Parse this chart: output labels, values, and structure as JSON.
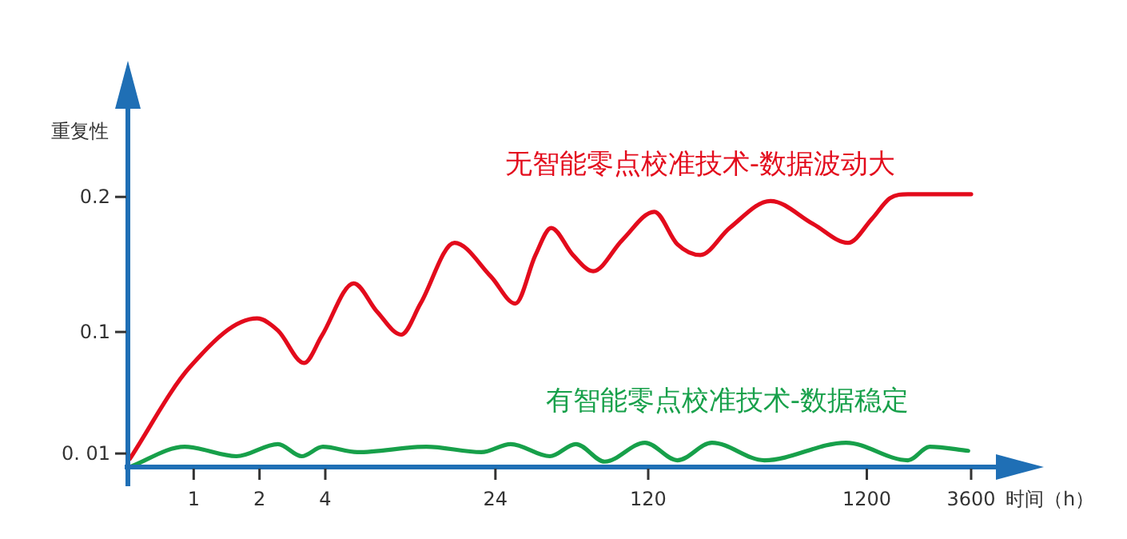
{
  "chart_data": {
    "type": "line",
    "xlabel": "时间（h）",
    "ylabel": "重复性",
    "log": "x",
    "xlim": [
      0.5,
      5000
    ],
    "xticks": [
      1,
      2,
      4,
      24,
      120,
      1200,
      3600
    ],
    "ylim": [
      0,
      0.27
    ],
    "yticks": [
      {
        "value": 0.01,
        "label": "0. 01"
      },
      0.1,
      0.2
    ],
    "grid": false,
    "marker": "none",
    "line_style": "solid",
    "series": [
      {
        "name": "无智能零点校准技术-数据波动大",
        "color": "#e30b1c",
        "x": [
          0.51,
          0.96,
          1.95,
          2.43,
          3.2,
          3.85,
          5.4,
          6.9,
          8.9,
          10.9,
          15.6,
          22.9,
          29.6,
          36.6,
          43.2,
          54.3,
          67.2,
          91.2,
          128,
          163,
          208,
          283,
          435,
          681,
          984,
          1270,
          1530,
          1850,
          3600
        ],
        "values": [
          0.006,
          0.074,
          0.11,
          0.101,
          0.077,
          0.097,
          0.136,
          0.115,
          0.098,
          0.121,
          0.166,
          0.141,
          0.121,
          0.157,
          0.177,
          0.157,
          0.145,
          0.168,
          0.189,
          0.165,
          0.157,
          0.177,
          0.197,
          0.18,
          0.166,
          0.184,
          0.199,
          0.202,
          0.202
        ]
      },
      {
        "name": "有智能零点校准技术-数据稳定",
        "color": "#17a04a",
        "x": [
          0.51,
          0.91,
          1.57,
          2.43,
          3.12,
          3.9,
          5.6,
          11.6,
          20.7,
          28.2,
          42.6,
          56.0,
          75.9,
          116,
          163,
          235,
          408,
          964,
          1850,
          2330,
          3490
        ],
        "values": [
          0.0,
          0.015,
          0.008,
          0.017,
          0.008,
          0.015,
          0.011,
          0.015,
          0.011,
          0.017,
          0.008,
          0.017,
          0.004,
          0.018,
          0.005,
          0.018,
          0.005,
          0.018,
          0.005,
          0.015,
          0.012
        ]
      }
    ]
  }
}
